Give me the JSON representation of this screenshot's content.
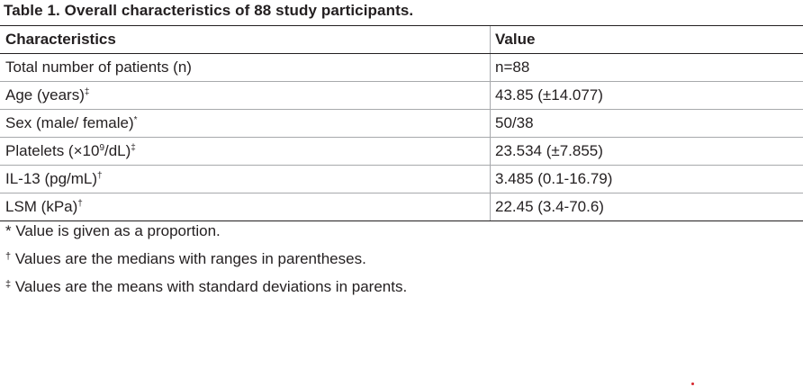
{
  "caption": "Table 1.  Overall characteristics of 88 study participants.",
  "table": {
    "headers": [
      "Characteristics",
      "Value"
    ],
    "rows": [
      {
        "label": "Total number of patients (n)",
        "mark": "",
        "value": "n=88"
      },
      {
        "label": "Age (years)",
        "mark": "‡",
        "value": "43.85 (±14.077)"
      },
      {
        "label": "Sex (male/ female)",
        "mark": "*",
        "value": "50/38"
      },
      {
        "label": "Platelets (×10",
        "exp": "9",
        "label_after": "/dL)",
        "mark": "‡",
        "value": "23.534 (±7.855)"
      },
      {
        "label": "IL-13 (pg/mL)",
        "mark": "†",
        "value": "3.485 (0.1-16.79)"
      },
      {
        "label": "LSM (kPa)",
        "mark": "†",
        "value": "22.45 (3.4-70.6)"
      }
    ]
  },
  "footnotes": [
    {
      "symbol": "*",
      "text": " Value is given as a proportion."
    },
    {
      "symbol": "†",
      "text": " Values are the medians with ranges in parentheses."
    },
    {
      "symbol": "‡",
      "text": " Values are the means with standard deviations in parents."
    }
  ]
}
